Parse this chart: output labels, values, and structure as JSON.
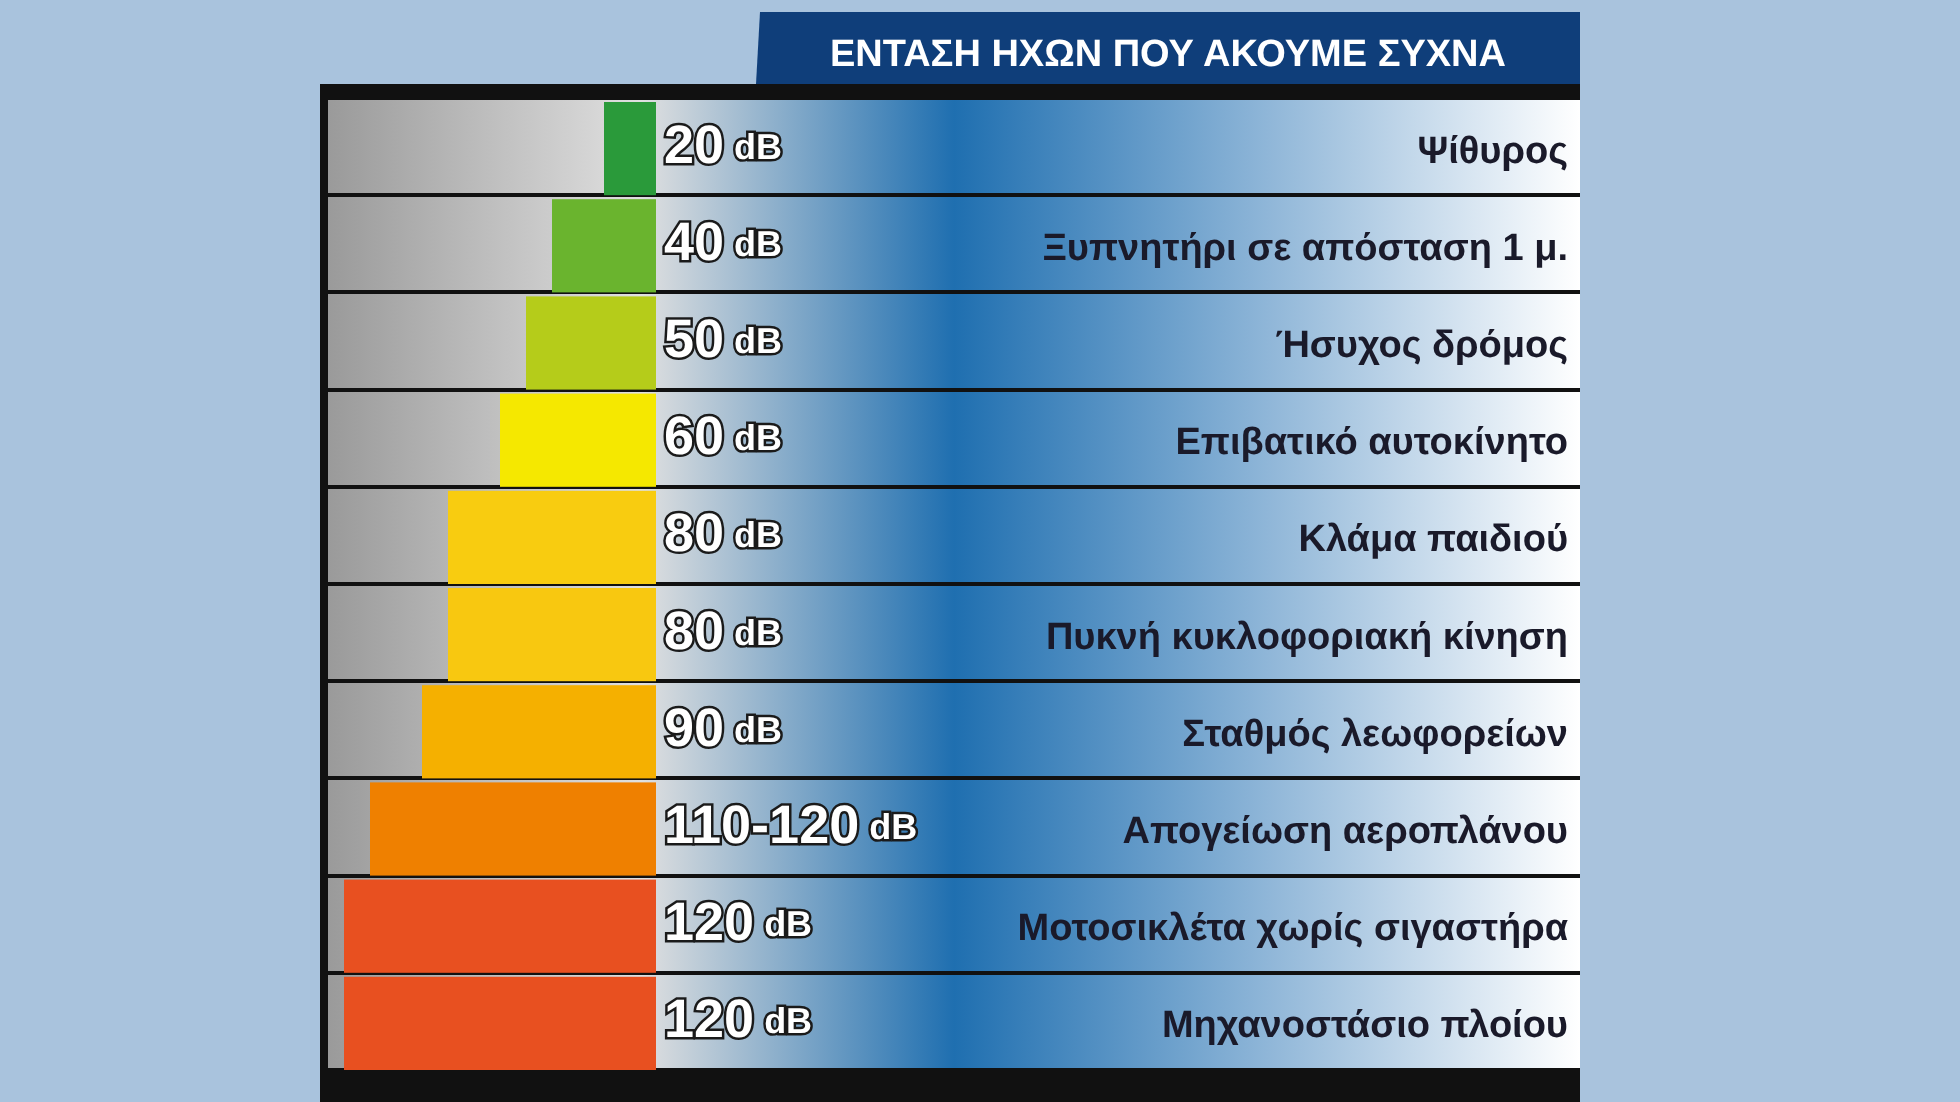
{
  "chart_data": {
    "type": "bar",
    "orientation": "horizontal",
    "title": "ΕΝΤΑΣΗ ΗΧΩΝ ΠΟΥ ΑΚΟΥΜΕ ΣΥΧΝΑ",
    "categories": [
      "Ψίθυρος",
      "Ξυπνητήρι σε απόσταση 1 μ.",
      "Ήσυχος δρόμος",
      "Επιβατικό αυτοκίνητο",
      "Κλάμα παιδιού",
      "Πυκνή κυκλοφοριακή κίνηση",
      "Σταθμός λεωφορείων",
      "Απογείωση αεροπλάνου",
      "Μοτοσικλέτα χωρίς σιγαστήρα",
      "Μηχανοστάσιο πλοίου"
    ],
    "values": [
      20,
      40,
      50,
      60,
      80,
      80,
      90,
      110,
      120,
      120
    ],
    "value_labels": [
      "20 dB",
      "40 dB",
      "50 dB",
      "60 dB",
      "80 dB",
      "80 dB",
      "90 dB",
      "110-120 dB",
      "120 dB",
      "120 dB"
    ],
    "colors": [
      "#2a9a3a",
      "#6ab42e",
      "#b5cc1a",
      "#f5e800",
      "#f8cc10",
      "#f8c810",
      "#f5b000",
      "#ef8000",
      "#e85020",
      "#e85020"
    ]
  }
}
